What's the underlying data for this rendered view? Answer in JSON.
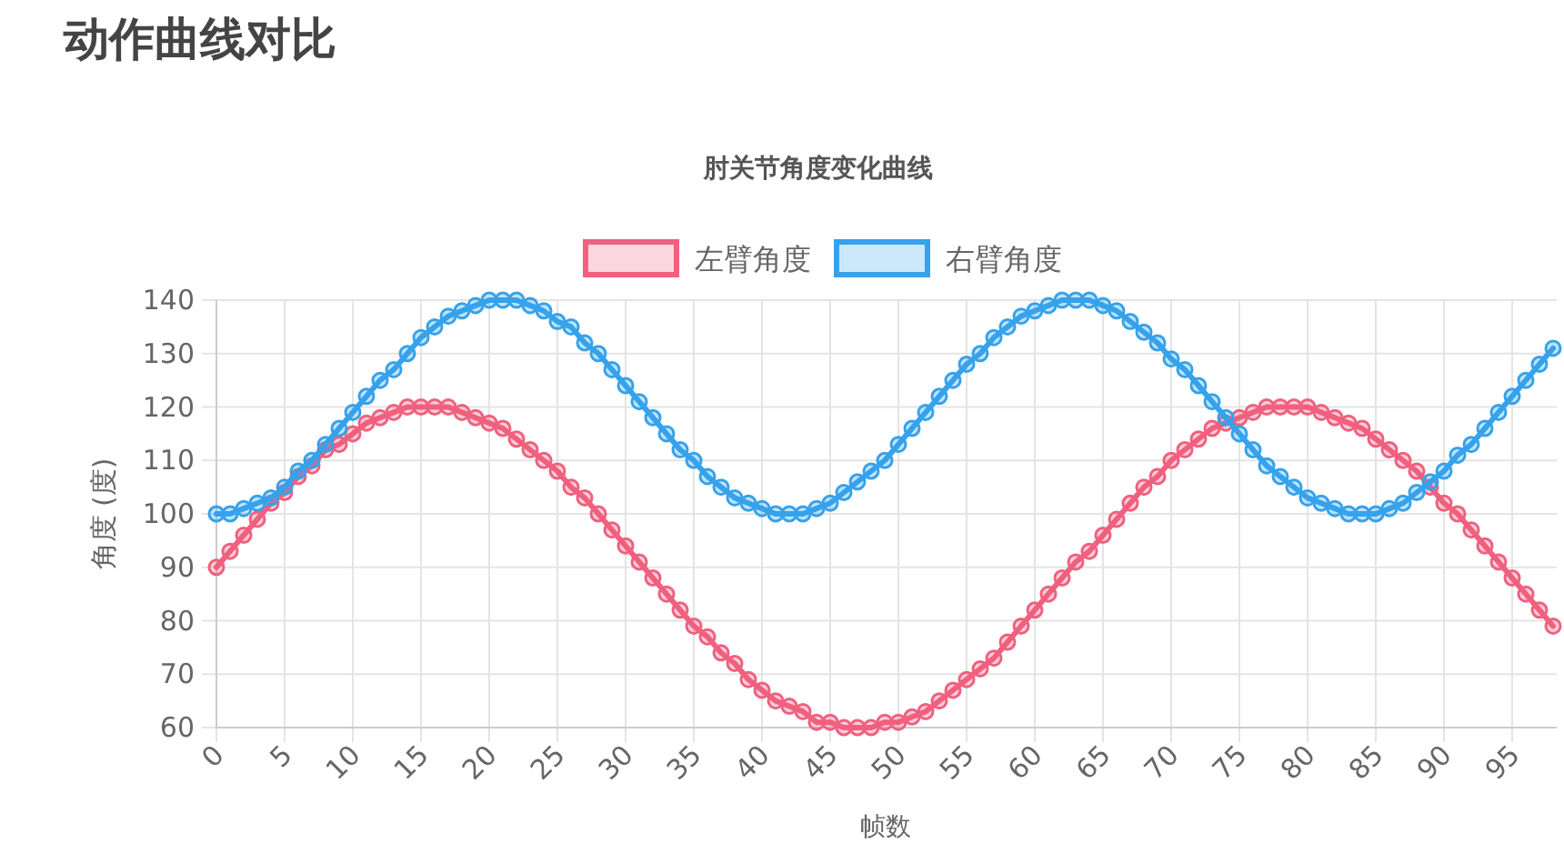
{
  "chart_data": {
    "type": "line",
    "title": "动作曲线对比",
    "subtitle": "肘关节角度变化曲线",
    "xlabel": "帧数",
    "ylabel": "角度 (度)",
    "categories": [
      "0",
      null,
      null,
      null,
      null,
      "5",
      null,
      null,
      null,
      null,
      "10",
      null,
      null,
      null,
      null,
      "15",
      null,
      null,
      null,
      null,
      "20",
      null,
      null,
      null,
      null,
      "25",
      null,
      null,
      null,
      null,
      "30",
      null,
      null,
      null,
      null,
      "35",
      null,
      null,
      null,
      null,
      "40",
      null,
      null,
      null,
      null,
      "45",
      null,
      null,
      null,
      null,
      "50",
      null,
      null,
      null,
      null,
      "55",
      null,
      null,
      null,
      null,
      "60",
      null,
      null,
      null,
      null,
      "65",
      null,
      null,
      null,
      null,
      "70",
      null,
      null,
      null,
      null,
      "75",
      null,
      null,
      null,
      null,
      "80",
      null,
      null,
      null,
      null,
      "85",
      null,
      null,
      null,
      null,
      "90",
      null,
      null,
      null,
      null,
      "95",
      null,
      null,
      null
    ],
    "series": [
      {
        "name": "左臂角度",
        "color": "#f0607f",
        "values": [
          90,
          93,
          96,
          99,
          102,
          104,
          107,
          109,
          112,
          113,
          115,
          117,
          118,
          119,
          120,
          120,
          120,
          120,
          119,
          118,
          117,
          116,
          114,
          112,
          110,
          108,
          105,
          103,
          100,
          97,
          94,
          91,
          88,
          85,
          82,
          79,
          77,
          74,
          72,
          69,
          67,
          65,
          64,
          63,
          61,
          61,
          60,
          60,
          60,
          61,
          61,
          62,
          63,
          65,
          67,
          69,
          71,
          73,
          76,
          79,
          82,
          85,
          88,
          91,
          93,
          96,
          99,
          102,
          105,
          107,
          110,
          112,
          114,
          116,
          117,
          118,
          119,
          120,
          120,
          120,
          120,
          119,
          118,
          117,
          116,
          114,
          112,
          110,
          108,
          105,
          102,
          100,
          97,
          94,
          91,
          88,
          85,
          82,
          79
        ]
      },
      {
        "name": "右臂角度",
        "color": "#36a2eb",
        "values": [
          100,
          100,
          101,
          102,
          103,
          105,
          108,
          110,
          113,
          116,
          119,
          122,
          125,
          127,
          130,
          133,
          135,
          137,
          138,
          139,
          140,
          140,
          140,
          139,
          138,
          136,
          135,
          132,
          130,
          127,
          124,
          121,
          118,
          115,
          112,
          110,
          107,
          105,
          103,
          102,
          101,
          100,
          100,
          100,
          101,
          102,
          104,
          106,
          108,
          110,
          113,
          116,
          119,
          122,
          125,
          128,
          130,
          133,
          135,
          137,
          138,
          139,
          140,
          140,
          140,
          139,
          138,
          136,
          134,
          132,
          129,
          127,
          124,
          121,
          118,
          115,
          112,
          109,
          107,
          105,
          103,
          102,
          101,
          100,
          100,
          100,
          101,
          102,
          104,
          106,
          108,
          111,
          113,
          116,
          119,
          122,
          125,
          128,
          131
        ]
      }
    ],
    "ylim": [
      60,
      140
    ],
    "yticks": [
      60,
      70,
      80,
      90,
      100,
      110,
      120,
      130,
      140
    ],
    "grid": true,
    "legend": "top",
    "marker": "circle",
    "line_style": "solid"
  }
}
